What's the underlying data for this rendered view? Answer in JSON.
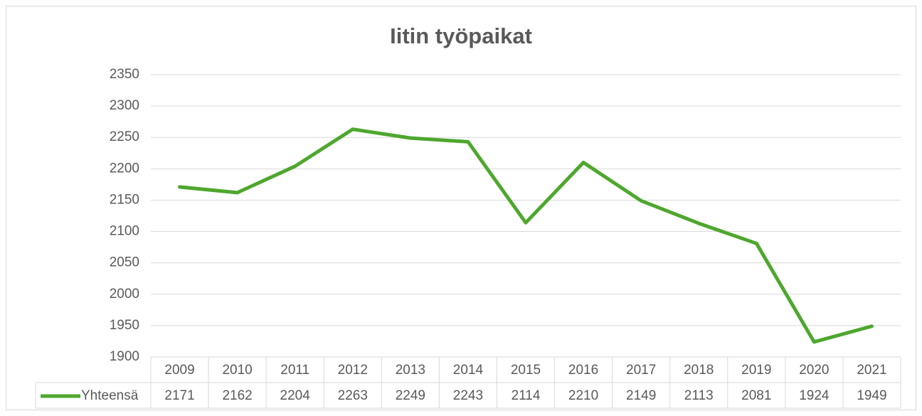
{
  "chart_data": {
    "type": "line",
    "title": "Iitin työpaikat",
    "categories": [
      "2009",
      "2010",
      "2011",
      "2012",
      "2013",
      "2014",
      "2015",
      "2016",
      "2017",
      "2018",
      "2019",
      "2020",
      "2021"
    ],
    "series": [
      {
        "name": "Yhteensä",
        "color": "#4ea72e",
        "values": [
          2171,
          2162,
          2204,
          2263,
          2249,
          2243,
          2114,
          2210,
          2149,
          2113,
          2081,
          1924,
          1949
        ]
      }
    ],
    "ylim": [
      1900,
      2350
    ],
    "yticks": [
      1900,
      1950,
      2000,
      2050,
      2100,
      2150,
      2200,
      2250,
      2300,
      2350
    ],
    "grid": true,
    "data_table": true
  }
}
